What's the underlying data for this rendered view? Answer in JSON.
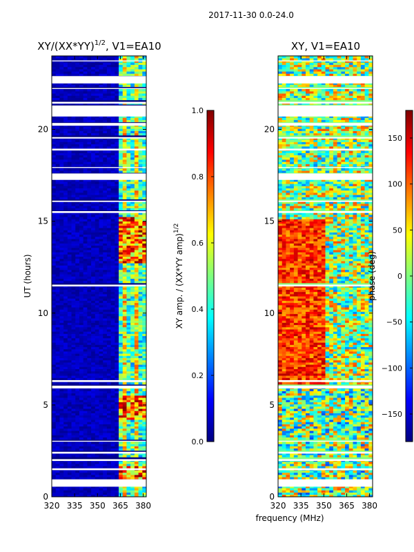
{
  "suptitle": "2017-11-30 0.0-24.0",
  "colormap": [
    "#00007f",
    "#0000ff",
    "#007fff",
    "#00ffff",
    "#7fff7f",
    "#ffff00",
    "#ff7f00",
    "#ff0000",
    "#7f0000"
  ],
  "chart_data": [
    {
      "type": "heatmap",
      "title_main": "XY/(XX*YY)",
      "title_sup": "1/2",
      "title_tail": ", V1=EA10",
      "xlabel": "",
      "ylabel": "UT (hours)",
      "xlim": [
        320,
        382
      ],
      "ylim": [
        0,
        24
      ],
      "xticks": [
        "320",
        "335",
        "350",
        "365",
        "380"
      ],
      "yticks": [
        "0",
        "5",
        "10",
        "15",
        "20"
      ],
      "colorbar": {
        "label_main": "XY amp. / (XX*YY amp)",
        "label_sup": "1/2",
        "range": [
          0.0,
          1.0
        ],
        "ticks": [
          "0.0",
          "0.2",
          "0.4",
          "0.6",
          "0.8",
          "1.0"
        ]
      }
    },
    {
      "type": "heatmap",
      "title_main": "XY, V1=EA10",
      "xlabel": "frequency (MHz)",
      "ylabel": "",
      "xlim": [
        320,
        382
      ],
      "ylim": [
        0,
        24
      ],
      "xticks": [
        "320",
        "335",
        "350",
        "365",
        "380"
      ],
      "yticks": [
        "0",
        "5",
        "10",
        "15",
        "20"
      ],
      "colorbar": {
        "label_main": "phase (deg)",
        "range": [
          -180,
          180
        ],
        "ticks": [
          "−150",
          "−100",
          "−50",
          "0",
          "50",
          "100",
          "150"
        ]
      }
    }
  ]
}
